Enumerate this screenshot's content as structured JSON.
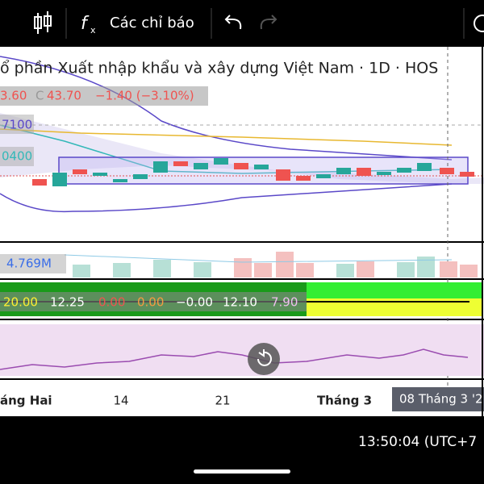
{
  "toolbar": {
    "indicators": "Các chỉ báo"
  },
  "chart": {
    "title": "ổ phần Xuất nhập khẩu và xây dựng Việt Nam · 1D · HOS",
    "ohlc": {
      "open": "3.60",
      "close_label": "C",
      "close": "43.70",
      "change": "−1.40 (−3.10%)"
    },
    "price_labels": [
      "7100",
      "0400"
    ],
    "volume": "4.769M",
    "indicator_values": [
      "20.00",
      "12.25",
      "0.00",
      "0.00",
      "−0.00",
      "12.10",
      "7.90"
    ],
    "x_labels": [
      "áng Hai",
      "14",
      "21",
      "Tháng 3"
    ],
    "crosshair_date": "08 Tháng 3 '2"
  },
  "status": {
    "time": "13:50:04 (UTC+7"
  }
}
